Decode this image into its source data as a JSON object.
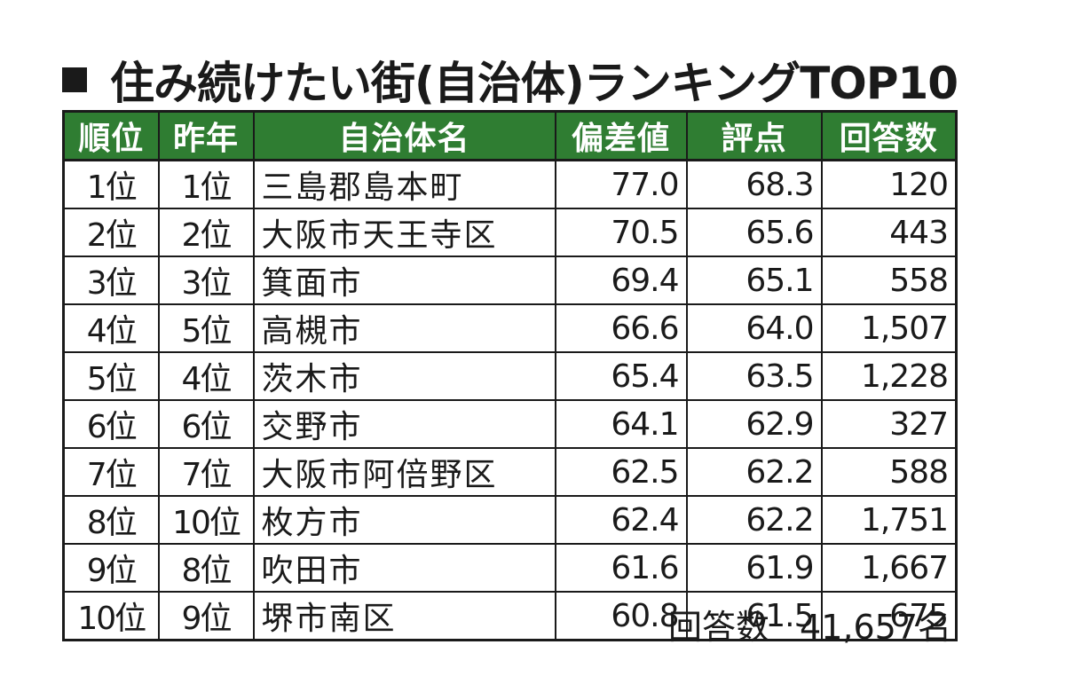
{
  "title": "住み続けたい街(自治体)ランキングTOP10",
  "title_icon": "black-square",
  "colors": {
    "header_bg": "#2f7d32",
    "header_text": "#ffffff",
    "border": "#1a1a1a"
  },
  "table": {
    "headers": [
      "順位",
      "昨年",
      "自治体名",
      "偏差値",
      "評点",
      "回答数"
    ],
    "rows": [
      [
        "1位",
        "1位",
        "三島郡島本町",
        "77.0",
        "68.3",
        "120"
      ],
      [
        "2位",
        "2位",
        "大阪市天王寺区",
        "70.5",
        "65.6",
        "443"
      ],
      [
        "3位",
        "3位",
        "箕面市",
        "69.4",
        "65.1",
        "558"
      ],
      [
        "4位",
        "5位",
        "高槻市",
        "66.6",
        "64.0",
        "1,507"
      ],
      [
        "5位",
        "4位",
        "茨木市",
        "65.4",
        "63.5",
        "1,228"
      ],
      [
        "6位",
        "6位",
        "交野市",
        "64.1",
        "62.9",
        "327"
      ],
      [
        "7位",
        "7位",
        "大阪市阿倍野区",
        "62.5",
        "62.2",
        "588"
      ],
      [
        "8位",
        "10位",
        "枚方市",
        "62.4",
        "62.2",
        "1,751"
      ],
      [
        "9位",
        "8位",
        "吹田市",
        "61.6",
        "61.9",
        "1,667"
      ],
      [
        "10位",
        "9位",
        "堺市南区",
        "60.8",
        "61.5",
        "675"
      ]
    ]
  },
  "footer": {
    "label": "回答数",
    "value": "41,657名"
  }
}
